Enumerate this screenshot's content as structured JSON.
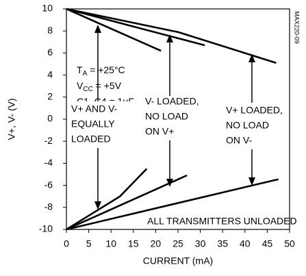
{
  "chart_data": {
    "type": "line",
    "x_label": "CURRENT (mA)",
    "y_label": "V+, V- (V)",
    "xlim": [
      0,
      50
    ],
    "ylim": [
      -10,
      10
    ],
    "xticks": [
      0,
      5,
      10,
      15,
      20,
      25,
      30,
      35,
      40,
      45,
      50
    ],
    "yticks": [
      -10,
      -8,
      -6,
      -4,
      -2,
      0,
      2,
      4,
      6,
      8,
      10
    ],
    "color": "#000000",
    "series": [
      {
        "x": [
          0,
          21.2
        ],
        "values": [
          10,
          6.2
        ]
      },
      {
        "x": [
          0,
          31
        ],
        "values": [
          10,
          6.7
        ]
      },
      {
        "x": [
          0,
          25,
          47
        ],
        "values": [
          10,
          7.9,
          5.1
        ]
      },
      {
        "x": [
          0,
          12,
          18
        ],
        "values": [
          -10,
          -7,
          -4.5
        ]
      },
      {
        "x": [
          0,
          27
        ],
        "values": [
          -10,
          -5.1
        ]
      },
      {
        "x": [
          0,
          47.5
        ],
        "values": [
          -10,
          -5.45
        ]
      }
    ],
    "conditions": [
      {
        "text": "T",
        "sub": "A",
        "rest": " = +25°C"
      },
      {
        "text": "V",
        "sub": "CC",
        "rest": " = +5V"
      },
      {
        "text": "C1–C4 = 1µF"
      }
    ],
    "annotations": [
      [
        "V+ AND V-",
        "EQUALLY",
        "LOADED"
      ],
      [
        "V- LOADED,",
        "NO LOAD",
        "ON V+"
      ],
      [
        "V+ LOADED,",
        "NO LOAD",
        "ON V-"
      ],
      [
        "ALL TRANSMITTERS UNLOADED"
      ]
    ],
    "code": "MAX220-09"
  }
}
